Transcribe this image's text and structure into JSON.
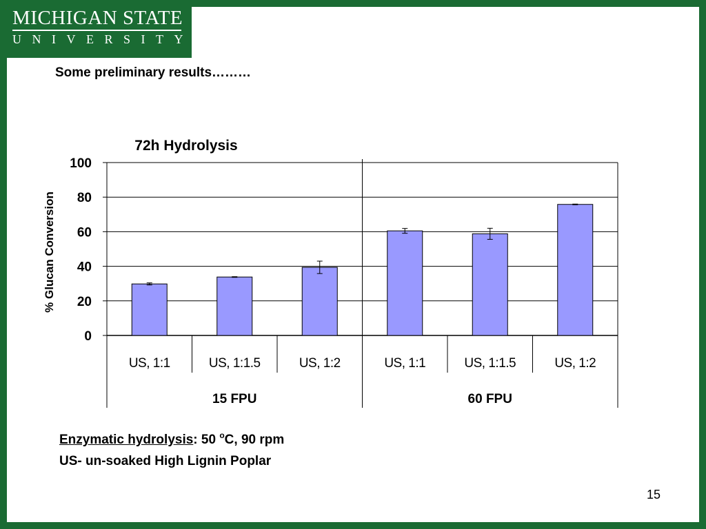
{
  "logo": {
    "line1": "MICHIGAN STATE",
    "line2": "UNIVERSITY"
  },
  "slide": {
    "title": "Some preliminary results………",
    "page_number": "15"
  },
  "notes": {
    "line1_label": "Enzymatic hydrolysis",
    "line1_sep": ": 50 ",
    "line1_sup": "o",
    "line1_rest": "C, 90 rpm",
    "line2": "US- un-soaked High Lignin Poplar"
  },
  "colors": {
    "brand_green": "#1a6b33",
    "bar_fill": "#9999ff"
  },
  "chart_data": {
    "type": "bar",
    "title": "72h Hydrolysis",
    "xlabel": "",
    "ylabel": "% Glucan Conversion",
    "ylim": [
      0,
      100
    ],
    "yticks": [
      "0",
      "20",
      "40",
      "60",
      "80",
      "100"
    ],
    "grid": true,
    "categories": [
      "US, 1:1",
      "US, 1:1.5",
      "US, 1:2",
      "US, 1:1",
      "US, 1:1.5",
      "US, 1:2"
    ],
    "groups": [
      {
        "label": "15 FPU",
        "count": 3
      },
      {
        "label": "60 FPU",
        "count": 3
      }
    ],
    "values": [
      29.8,
      33.8,
      39.4,
      60.5,
      58.8,
      75.8
    ],
    "errors": [
      0.6,
      0.2,
      3.6,
      1.4,
      3.2,
      0.2
    ]
  }
}
